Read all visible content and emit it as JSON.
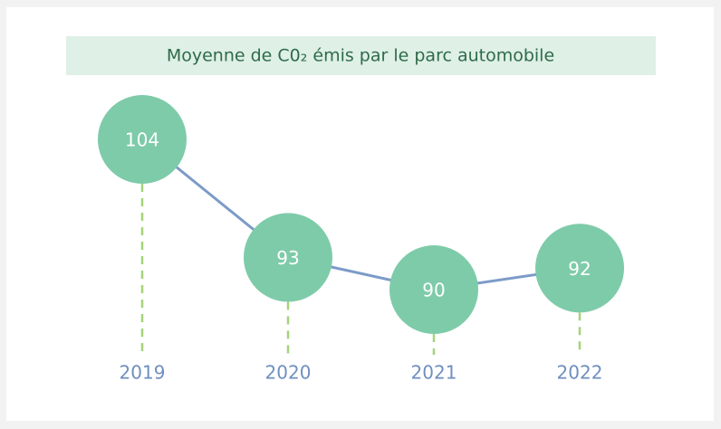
{
  "chart_data": {
    "type": "line",
    "title": "Moyenne de C0₂ émis par le parc automobile",
    "categories": [
      "2019",
      "2020",
      "2021",
      "2022"
    ],
    "values": [
      104,
      93,
      90,
      92
    ],
    "color": "#7c9bc8",
    "marker_color": "#7ecba9"
  }
}
